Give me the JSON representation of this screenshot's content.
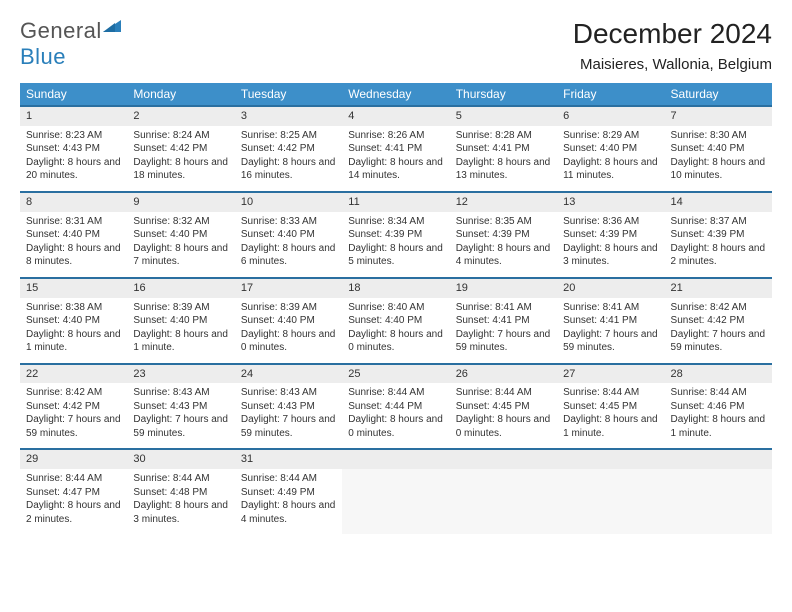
{
  "logo": {
    "word1": "General",
    "word2": "Blue",
    "color_general": "#555555",
    "color_blue": "#2a7fba",
    "triangle_color": "#2a7fba"
  },
  "title": "December 2024",
  "location": "Maisieres, Wallonia, Belgium",
  "header_bg": "#3d8fc9",
  "header_text": "#ffffff",
  "daynum_bg": "#ededed",
  "border_top": "#2a6fa0",
  "empty_bg": "#f7f7f7",
  "font_family": "Arial, Helvetica, sans-serif",
  "days_of_week": [
    "Sunday",
    "Monday",
    "Tuesday",
    "Wednesday",
    "Thursday",
    "Friday",
    "Saturday"
  ],
  "weeks": [
    [
      {
        "n": "1",
        "sr": "Sunrise: 8:23 AM",
        "ss": "Sunset: 4:43 PM",
        "dl": "Daylight: 8 hours and 20 minutes."
      },
      {
        "n": "2",
        "sr": "Sunrise: 8:24 AM",
        "ss": "Sunset: 4:42 PM",
        "dl": "Daylight: 8 hours and 18 minutes."
      },
      {
        "n": "3",
        "sr": "Sunrise: 8:25 AM",
        "ss": "Sunset: 4:42 PM",
        "dl": "Daylight: 8 hours and 16 minutes."
      },
      {
        "n": "4",
        "sr": "Sunrise: 8:26 AM",
        "ss": "Sunset: 4:41 PM",
        "dl": "Daylight: 8 hours and 14 minutes."
      },
      {
        "n": "5",
        "sr": "Sunrise: 8:28 AM",
        "ss": "Sunset: 4:41 PM",
        "dl": "Daylight: 8 hours and 13 minutes."
      },
      {
        "n": "6",
        "sr": "Sunrise: 8:29 AM",
        "ss": "Sunset: 4:40 PM",
        "dl": "Daylight: 8 hours and 11 minutes."
      },
      {
        "n": "7",
        "sr": "Sunrise: 8:30 AM",
        "ss": "Sunset: 4:40 PM",
        "dl": "Daylight: 8 hours and 10 minutes."
      }
    ],
    [
      {
        "n": "8",
        "sr": "Sunrise: 8:31 AM",
        "ss": "Sunset: 4:40 PM",
        "dl": "Daylight: 8 hours and 8 minutes."
      },
      {
        "n": "9",
        "sr": "Sunrise: 8:32 AM",
        "ss": "Sunset: 4:40 PM",
        "dl": "Daylight: 8 hours and 7 minutes."
      },
      {
        "n": "10",
        "sr": "Sunrise: 8:33 AM",
        "ss": "Sunset: 4:40 PM",
        "dl": "Daylight: 8 hours and 6 minutes."
      },
      {
        "n": "11",
        "sr": "Sunrise: 8:34 AM",
        "ss": "Sunset: 4:39 PM",
        "dl": "Daylight: 8 hours and 5 minutes."
      },
      {
        "n": "12",
        "sr": "Sunrise: 8:35 AM",
        "ss": "Sunset: 4:39 PM",
        "dl": "Daylight: 8 hours and 4 minutes."
      },
      {
        "n": "13",
        "sr": "Sunrise: 8:36 AM",
        "ss": "Sunset: 4:39 PM",
        "dl": "Daylight: 8 hours and 3 minutes."
      },
      {
        "n": "14",
        "sr": "Sunrise: 8:37 AM",
        "ss": "Sunset: 4:39 PM",
        "dl": "Daylight: 8 hours and 2 minutes."
      }
    ],
    [
      {
        "n": "15",
        "sr": "Sunrise: 8:38 AM",
        "ss": "Sunset: 4:40 PM",
        "dl": "Daylight: 8 hours and 1 minute."
      },
      {
        "n": "16",
        "sr": "Sunrise: 8:39 AM",
        "ss": "Sunset: 4:40 PM",
        "dl": "Daylight: 8 hours and 1 minute."
      },
      {
        "n": "17",
        "sr": "Sunrise: 8:39 AM",
        "ss": "Sunset: 4:40 PM",
        "dl": "Daylight: 8 hours and 0 minutes."
      },
      {
        "n": "18",
        "sr": "Sunrise: 8:40 AM",
        "ss": "Sunset: 4:40 PM",
        "dl": "Daylight: 8 hours and 0 minutes."
      },
      {
        "n": "19",
        "sr": "Sunrise: 8:41 AM",
        "ss": "Sunset: 4:41 PM",
        "dl": "Daylight: 7 hours and 59 minutes."
      },
      {
        "n": "20",
        "sr": "Sunrise: 8:41 AM",
        "ss": "Sunset: 4:41 PM",
        "dl": "Daylight: 7 hours and 59 minutes."
      },
      {
        "n": "21",
        "sr": "Sunrise: 8:42 AM",
        "ss": "Sunset: 4:42 PM",
        "dl": "Daylight: 7 hours and 59 minutes."
      }
    ],
    [
      {
        "n": "22",
        "sr": "Sunrise: 8:42 AM",
        "ss": "Sunset: 4:42 PM",
        "dl": "Daylight: 7 hours and 59 minutes."
      },
      {
        "n": "23",
        "sr": "Sunrise: 8:43 AM",
        "ss": "Sunset: 4:43 PM",
        "dl": "Daylight: 7 hours and 59 minutes."
      },
      {
        "n": "24",
        "sr": "Sunrise: 8:43 AM",
        "ss": "Sunset: 4:43 PM",
        "dl": "Daylight: 7 hours and 59 minutes."
      },
      {
        "n": "25",
        "sr": "Sunrise: 8:44 AM",
        "ss": "Sunset: 4:44 PM",
        "dl": "Daylight: 8 hours and 0 minutes."
      },
      {
        "n": "26",
        "sr": "Sunrise: 8:44 AM",
        "ss": "Sunset: 4:45 PM",
        "dl": "Daylight: 8 hours and 0 minutes."
      },
      {
        "n": "27",
        "sr": "Sunrise: 8:44 AM",
        "ss": "Sunset: 4:45 PM",
        "dl": "Daylight: 8 hours and 1 minute."
      },
      {
        "n": "28",
        "sr": "Sunrise: 8:44 AM",
        "ss": "Sunset: 4:46 PM",
        "dl": "Daylight: 8 hours and 1 minute."
      }
    ],
    [
      {
        "n": "29",
        "sr": "Sunrise: 8:44 AM",
        "ss": "Sunset: 4:47 PM",
        "dl": "Daylight: 8 hours and 2 minutes."
      },
      {
        "n": "30",
        "sr": "Sunrise: 8:44 AM",
        "ss": "Sunset: 4:48 PM",
        "dl": "Daylight: 8 hours and 3 minutes."
      },
      {
        "n": "31",
        "sr": "Sunrise: 8:44 AM",
        "ss": "Sunset: 4:49 PM",
        "dl": "Daylight: 8 hours and 4 minutes."
      },
      null,
      null,
      null,
      null
    ]
  ]
}
